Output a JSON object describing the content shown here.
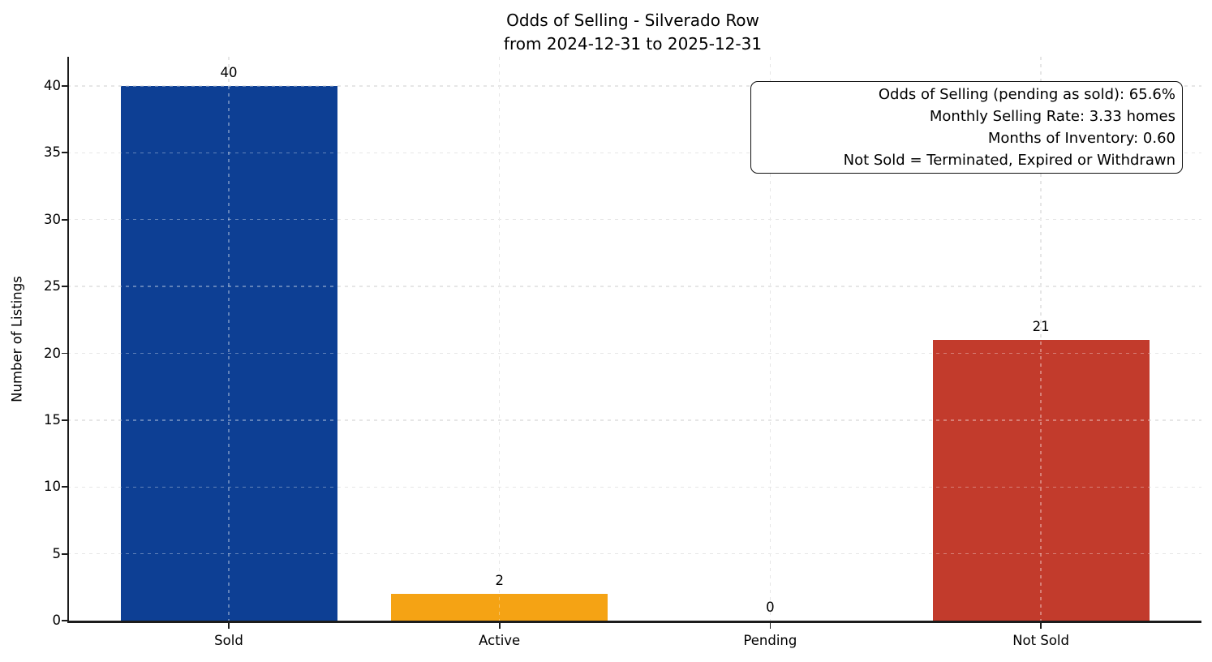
{
  "title": {
    "line1": "Odds of Selling - Silverado Row",
    "line2": "from 2024-12-31 to 2025-12-31"
  },
  "annotation": {
    "line1": "Odds of Selling (pending as sold): 65.6%",
    "line2": "Monthly Selling Rate: 3.33 homes",
    "line3": "Months of Inventory: 0.60",
    "line4": "Not Sold = Terminated, Expired or Withdrawn"
  },
  "chart_data": {
    "type": "bar",
    "title": "Odds of Selling - Silverado Row\nfrom 2024-12-31 to 2025-12-31",
    "categories": [
      "Sold",
      "Active",
      "Pending",
      "Not Sold"
    ],
    "values": [
      40,
      2,
      0,
      21
    ],
    "value_labels": [
      "40",
      "2",
      "0",
      "21"
    ],
    "bar_colors": [
      "#0d3f94",
      "#f5a314",
      "#999999",
      "#c23b2c"
    ],
    "xlabel": "",
    "ylabel": "Number of Listings",
    "ylim": [
      0,
      42.2
    ],
    "yticks": [
      0,
      5,
      10,
      15,
      20,
      25,
      30,
      35,
      40
    ],
    "grid": true,
    "grid_style": "dashed",
    "legend": "none",
    "annotation_lines": [
      "Odds of Selling (pending as sold): 65.6%",
      "Monthly Selling Rate: 3.33 homes",
      "Months of Inventory: 0.60",
      "Not Sold = Terminated, Expired or Withdrawn"
    ]
  },
  "colors": {
    "sold_bar": "#0d3f94",
    "active_bar": "#f5a314",
    "not_sold_bar": "#c23b2c",
    "axis": "#1c1c1c",
    "grid": "#d9d9d9",
    "background": "#ffffff"
  }
}
